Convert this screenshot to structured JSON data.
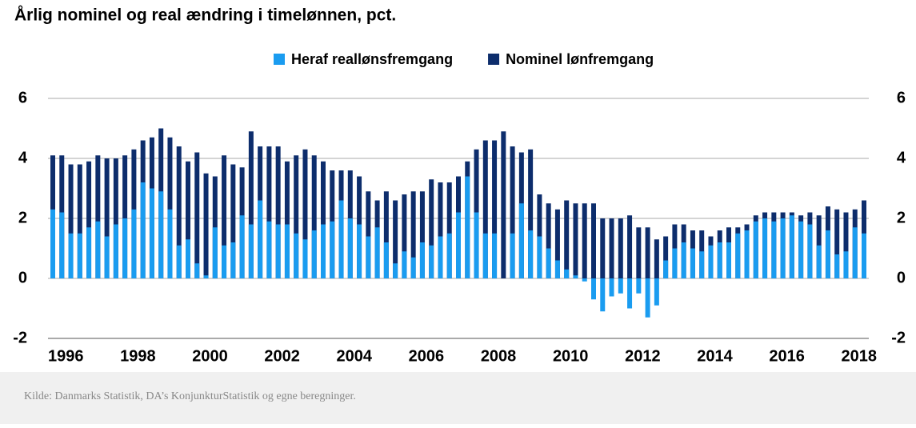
{
  "chart_data": {
    "type": "bar",
    "title": "Årlig nominel og real ændring i timelønnen, pct.",
    "source": "Kilde: Danmarks Statistik, DA’s KonjunkturStatistik og egne beregninger.",
    "categories": [
      null,
      "1996",
      null,
      null,
      null,
      null,
      null,
      null,
      null,
      "1998",
      null,
      null,
      null,
      null,
      null,
      null,
      null,
      "2000",
      null,
      null,
      null,
      null,
      null,
      null,
      null,
      "2002",
      null,
      null,
      null,
      null,
      null,
      null,
      null,
      "2004",
      null,
      null,
      null,
      null,
      null,
      null,
      null,
      "2006",
      null,
      null,
      null,
      null,
      null,
      null,
      null,
      "2008",
      null,
      null,
      null,
      null,
      null,
      null,
      null,
      "2010",
      null,
      null,
      null,
      null,
      null,
      null,
      null,
      "2012",
      null,
      null,
      null,
      null,
      null,
      null,
      null,
      "2014",
      null,
      null,
      null,
      null,
      null,
      null,
      null,
      "2016",
      null,
      null,
      null,
      null,
      null,
      null,
      null,
      "2018",
      null
    ],
    "series": [
      {
        "name": "Nominel lønfremgang",
        "color": "#0d2d6c",
        "values": [
          4.1,
          4.1,
          3.8,
          3.8,
          3.9,
          4.1,
          4.0,
          4.0,
          4.1,
          4.3,
          4.6,
          4.7,
          5.0,
          4.7,
          4.4,
          3.9,
          4.2,
          3.5,
          3.4,
          4.1,
          3.8,
          3.7,
          4.9,
          4.4,
          4.4,
          4.4,
          3.9,
          4.1,
          4.3,
          4.1,
          3.9,
          3.6,
          3.6,
          3.6,
          3.4,
          2.9,
          2.6,
          2.9,
          2.6,
          2.8,
          2.9,
          2.9,
          3.3,
          3.2,
          3.2,
          3.4,
          3.9,
          4.3,
          4.6,
          4.6,
          4.9,
          4.4,
          4.2,
          4.3,
          2.8,
          2.5,
          2.3,
          2.6,
          2.5,
          2.5,
          2.5,
          2.0,
          2.0,
          2.0,
          2.1,
          1.7,
          1.7,
          1.3,
          1.4,
          1.8,
          1.8,
          1.6,
          1.6,
          1.4,
          1.6,
          1.7,
          1.7,
          1.8,
          2.1,
          2.2,
          2.2,
          2.2,
          2.2,
          2.1,
          2.2,
          2.1,
          2.4,
          2.3,
          2.2,
          2.3,
          2.6
        ]
      },
      {
        "name": "Heraf reallønsfremgang",
        "color": "#1a9cf0",
        "values": [
          2.3,
          2.2,
          1.5,
          1.5,
          1.7,
          1.9,
          1.4,
          1.8,
          2.0,
          2.3,
          3.2,
          3.0,
          2.9,
          2.3,
          1.1,
          1.3,
          0.5,
          0.1,
          1.7,
          1.1,
          1.2,
          2.1,
          1.8,
          2.6,
          1.9,
          1.8,
          1.8,
          1.5,
          1.3,
          1.6,
          1.8,
          1.9,
          2.6,
          2.0,
          1.8,
          1.4,
          1.7,
          1.2,
          0.5,
          0.9,
          0.7,
          1.2,
          1.1,
          1.4,
          1.5,
          2.2,
          3.4,
          2.2,
          1.5,
          1.5,
          0.0,
          1.5,
          2.5,
          1.6,
          1.4,
          1.0,
          0.6,
          0.3,
          0.1,
          -0.1,
          -0.7,
          -1.1,
          -0.6,
          -0.5,
          -1.0,
          -0.5,
          -1.3,
          -0.9,
          0.6,
          1.0,
          1.2,
          1.0,
          0.9,
          1.1,
          1.2,
          1.2,
          1.5,
          1.6,
          1.9,
          2.0,
          1.9,
          2.0,
          2.1,
          1.9,
          1.8,
          1.1,
          1.6,
          0.8,
          0.9,
          1.7,
          1.5
        ]
      }
    ],
    "ylim": [
      -2,
      6
    ],
    "yticks": [
      -2,
      0,
      2,
      4,
      6
    ],
    "y2lim": [
      -2,
      6
    ],
    "y2ticks": [
      -2,
      0,
      2,
      4,
      6
    ],
    "grid": true,
    "legend": "top"
  }
}
